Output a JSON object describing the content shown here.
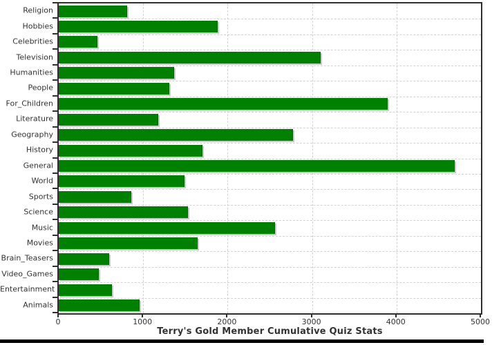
{
  "chart_data": {
    "type": "bar",
    "orientation": "horizontal",
    "title": "Terry's Gold Member Cumulative Quiz Stats",
    "categories": [
      "Religion",
      "Hobbies",
      "Celebrities",
      "Television",
      "Humanities",
      "People",
      "For_Children",
      "Literature",
      "Geography",
      "History",
      "General",
      "World",
      "Sports",
      "Science",
      "Music",
      "Movies",
      "Brain_Teasers",
      "Video_Games",
      "Entertainment",
      "Animals"
    ],
    "values": [
      800,
      1870,
      450,
      3090,
      1360,
      1300,
      3890,
      1170,
      2770,
      1690,
      4680,
      1480,
      850,
      1520,
      2550,
      1640,
      590,
      470,
      620,
      950
    ],
    "xlabel": "",
    "ylabel": "",
    "xlim": [
      0,
      5000
    ],
    "x_ticks": [
      0,
      1000,
      2000,
      3000,
      4000,
      5000
    ],
    "x_tick_labels": [
      "0",
      "1000",
      "2000",
      "3000",
      "4000",
      "5000"
    ],
    "grid": "dashed, vertical at each 1000 and horizontal at each category boundary",
    "legend": "none",
    "colors": {
      "bar": "#008000",
      "bar_shadow": "#c9c9c9",
      "gridline": "#d2d2d2",
      "plot_border": "#2e2e2e",
      "text": "#333333",
      "background": "#ffffff",
      "bottom_strip": "#000000"
    }
  }
}
